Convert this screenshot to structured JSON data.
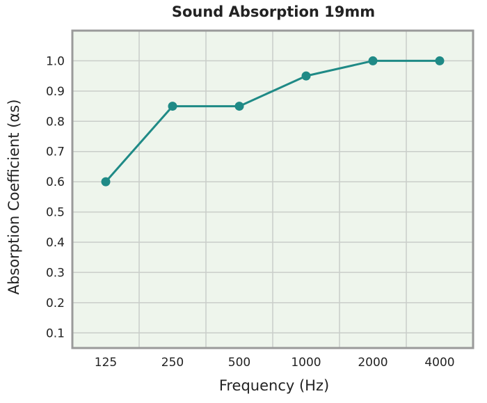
{
  "chart_data": {
    "type": "line",
    "title": "Sound Absorption 19mm",
    "xlabel": "Frequency (Hz)",
    "ylabel": "Absorption Coefficient (αs)",
    "categories": [
      "125",
      "250",
      "500",
      "1000",
      "2000",
      "4000"
    ],
    "series": [
      {
        "values": [
          0.6,
          0.85,
          0.85,
          0.95,
          1.0,
          1.0
        ]
      }
    ],
    "yticks": [
      "0.1",
      "0.2",
      "0.3",
      "0.4",
      "0.5",
      "0.6",
      "0.7",
      "0.8",
      "0.9",
      "1.0"
    ],
    "ylim": [
      0.05,
      1.1
    ],
    "grid": true,
    "colors": {
      "line": "#1f8a86",
      "plot_background": "#eef5ec",
      "grid": "#c9cdc9",
      "frame": "#9a9a9a"
    }
  }
}
